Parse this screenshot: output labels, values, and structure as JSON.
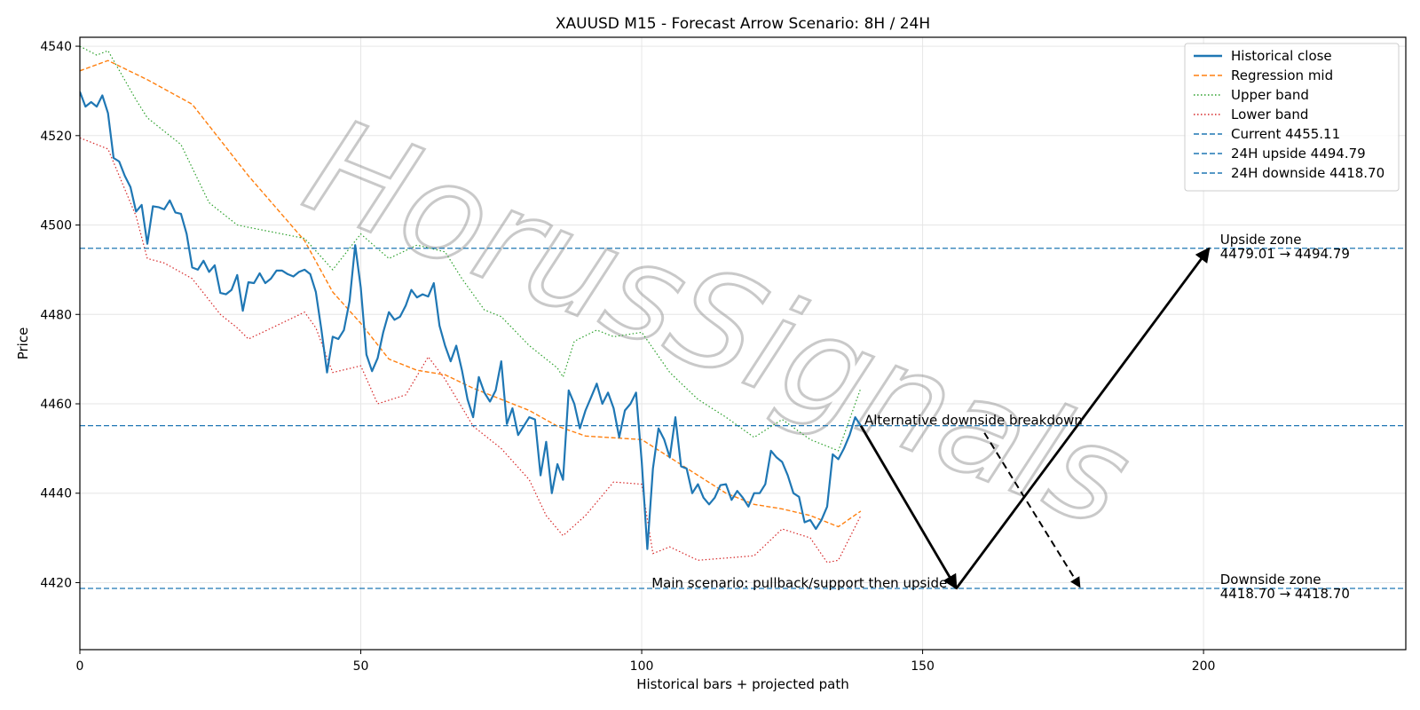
{
  "chart_data": {
    "type": "line",
    "title": "XAUUSD M15 - Forecast Arrow Scenario: 8H / 24H",
    "xlabel": "Historical bars + projected path",
    "ylabel": "Price",
    "xlim": [
      0,
      236
    ],
    "ylim": [
      4405,
      4542
    ],
    "xticks": [
      0,
      50,
      100,
      150,
      200
    ],
    "yticks": [
      4420,
      4440,
      4460,
      4480,
      4500,
      4520,
      4540
    ],
    "grid": true,
    "legend_position": "top-right",
    "watermark": "HorusSignals",
    "colors": {
      "historical": "#1f77b4",
      "mid": "#ff7f0e",
      "upper": "#2ca02c",
      "lower": "#d62728",
      "hline": "#1f77b4",
      "arrow": "#000000"
    },
    "historical_close": [
      4529.8,
      4526.5,
      4527.5,
      4526.5,
      4529.0,
      4525.0,
      4515.0,
      4514.2,
      4511.0,
      4508.5,
      4503.0,
      4504.5,
      4495.8,
      4504.2,
      4504.0,
      4503.5,
      4505.5,
      4502.8,
      4502.5,
      4498.0,
      4490.5,
      4490.0,
      4492.0,
      4489.5,
      4491.0,
      4484.8,
      4484.5,
      4485.5,
      4488.8,
      4480.8,
      4487.2,
      4487.0,
      4489.2,
      4487.0,
      4488.0,
      4489.8,
      4489.8,
      4489.0,
      4488.5,
      4489.5,
      4490.0,
      4489.0,
      4485.0,
      4476.5,
      4467.0,
      4475.0,
      4474.5,
      4476.5,
      4483.0,
      4495.5,
      4486.0,
      4471.0,
      4467.3,
      4470.2,
      4476.0,
      4480.5,
      4478.8,
      4479.5,
      4482.0,
      4485.5,
      4483.8,
      4484.5,
      4484.0,
      4487.0,
      4477.5,
      4473.0,
      4469.5,
      4473.0,
      4467.5,
      4461.0,
      4457.0,
      4466.0,
      4462.5,
      4460.5,
      4463.0,
      4469.5,
      4455.5,
      4459.0,
      4453.0,
      4455.0,
      4457.0,
      4456.5,
      4444.0,
      4451.5,
      4440.0,
      4446.5,
      4443.0,
      4463.0,
      4460.0,
      4454.5,
      4458.5,
      4461.5,
      4464.5,
      4460.0,
      4462.5,
      4459.0,
      4452.5,
      4458.5,
      4460.0,
      4462.5,
      4447.0,
      4427.5,
      4445.5,
      4454.5,
      4452.0,
      4448.0,
      4457.0,
      4446.0,
      4445.5,
      4440.0,
      4442.0,
      4439.0,
      4437.5,
      4439.0,
      4441.8,
      4442.0,
      4438.5,
      4440.5,
      4439.0,
      4437.0,
      4440.0,
      4440.0,
      4442.0,
      4449.5,
      4448.0,
      4447.0,
      4444.0,
      4440.0,
      4439.2,
      4433.5,
      4434.0,
      4432.0,
      4434.0,
      4437.0,
      4448.7,
      4447.6,
      4450.0,
      4453.0,
      4457.0,
      4455.11
    ],
    "regression_mid": {
      "x": [
        0,
        5,
        12,
        20,
        30,
        40,
        45,
        50,
        55,
        60,
        65,
        70,
        75,
        80,
        85,
        90,
        100,
        105,
        110,
        115,
        120,
        125,
        130,
        135,
        139
      ],
      "y": [
        4534.5,
        4536.8,
        4532.5,
        4527.0,
        4511.0,
        4496.5,
        4485.0,
        4478.0,
        4470.0,
        4467.5,
        4466.5,
        4463.5,
        4461.0,
        4458.5,
        4455.0,
        4452.8,
        4452.0,
        4448.0,
        4444.0,
        4440.0,
        4437.5,
        4436.5,
        4435.0,
        4432.5,
        4436.0
      ]
    },
    "upper_band": {
      "x": [
        0,
        3,
        5,
        10,
        12,
        18,
        23,
        28,
        30,
        40,
        45,
        50,
        55,
        60,
        65,
        68,
        72,
        75,
        80,
        85,
        86,
        88,
        92,
        95,
        100,
        105,
        110,
        115,
        120,
        125,
        130,
        135,
        139
      ],
      "y": [
        4540.0,
        4538.0,
        4539.0,
        4528.0,
        4524.0,
        4518.0,
        4505.0,
        4500.0,
        4499.5,
        4497.0,
        4490.0,
        4498.0,
        4492.5,
        4495.5,
        4494.0,
        4488.0,
        4481.0,
        4479.5,
        4473.0,
        4468.0,
        4466.0,
        4474.0,
        4476.5,
        4475.0,
        4476.0,
        4467.0,
        4461.0,
        4457.0,
        4452.5,
        4456.5,
        4452.0,
        4449.5,
        4463.5
      ]
    },
    "lower_band": {
      "x": [
        0,
        5,
        10,
        12,
        15,
        20,
        25,
        28,
        30,
        35,
        40,
        42,
        45,
        50,
        53,
        58,
        62,
        65,
        70,
        75,
        80,
        83,
        86,
        90,
        95,
        100,
        102,
        105,
        110,
        115,
        120,
        125,
        130,
        133,
        135,
        139
      ],
      "y": [
        4519.5,
        4517.0,
        4502.0,
        4492.5,
        4491.5,
        4488.0,
        4480.0,
        4477.0,
        4474.5,
        4477.5,
        4480.5,
        4477.0,
        4467.0,
        4468.5,
        4460.0,
        4462.0,
        4470.5,
        4465.5,
        4455.0,
        4450.0,
        4443.0,
        4435.0,
        4430.5,
        4435.0,
        4442.5,
        4442.0,
        4426.5,
        4428.0,
        4425.0,
        4425.5,
        4426.0,
        4432.0,
        4430.0,
        4424.5,
        4425.0,
        4435.0
      ]
    },
    "hlines": [
      {
        "label": "Current 4455.11",
        "y": 4455.11
      },
      {
        "label": "24H upside 4494.79",
        "y": 4494.79
      },
      {
        "label": "24H downside 4418.70",
        "y": 4418.7
      }
    ],
    "arrows": [
      {
        "from": [
          139,
          4455.11
        ],
        "to": [
          156,
          4418.7
        ],
        "style": "solid"
      },
      {
        "from": [
          156,
          4418.7
        ],
        "to": [
          201,
          4494.79
        ],
        "style": "solid"
      },
      {
        "from": [
          161,
          4453.5
        ],
        "to": [
          178,
          4419.0
        ],
        "style": "dashed"
      }
    ],
    "annotations": [
      {
        "text": "Alternative downside breakdown",
        "x": 139,
        "y": 4455.11
      },
      {
        "text": "Main scenario: pullback/support then upside",
        "x": 155,
        "y": 4418.7
      }
    ],
    "zones": [
      {
        "title": "Upside zone",
        "range": "4479.01 → 4494.79",
        "x": 202,
        "y": 4494.79
      },
      {
        "title": "Downside zone",
        "range": "4418.70 → 4418.70",
        "x": 202,
        "y": 4418.7
      }
    ],
    "legend": [
      {
        "label": "Historical close",
        "key": "historical",
        "style": "solid"
      },
      {
        "label": "Regression mid",
        "key": "mid",
        "style": "dashed"
      },
      {
        "label": "Upper band",
        "key": "upper",
        "style": "dotted"
      },
      {
        "label": "Lower band",
        "key": "lower",
        "style": "dotted"
      },
      {
        "label": "Current 4455.11",
        "key": "hline",
        "style": "dashed"
      },
      {
        "label": "24H upside 4494.79",
        "key": "hline",
        "style": "dashed"
      },
      {
        "label": "24H downside 4418.70",
        "key": "hline",
        "style": "dashed"
      }
    ]
  }
}
